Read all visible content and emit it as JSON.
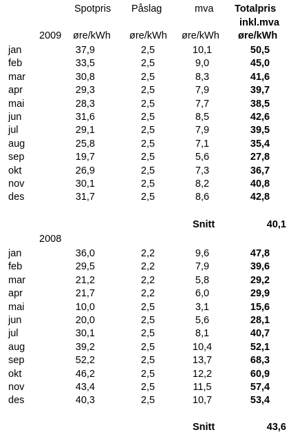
{
  "header": {
    "col1": "Spotpris",
    "col2": "Påslag",
    "col3": "mva",
    "col4_line1": "Totalpris",
    "col4_line2": "inkl.mva",
    "unit1": "øre/kWh",
    "unit2": "øre/kWh",
    "unit3": "øre/kWh",
    "unit4": "øre/kWh"
  },
  "sections": [
    {
      "year": "2009",
      "rows": [
        {
          "month": "jan",
          "spot": "37,9",
          "paslag": "2,5",
          "mva": "10,1",
          "total": "50,5"
        },
        {
          "month": "feb",
          "spot": "33,5",
          "paslag": "2,5",
          "mva": "9,0",
          "total": "45,0"
        },
        {
          "month": "mar",
          "spot": "30,8",
          "paslag": "2,5",
          "mva": "8,3",
          "total": "41,6"
        },
        {
          "month": "apr",
          "spot": "29,3",
          "paslag": "2,5",
          "mva": "7,9",
          "total": "39,7"
        },
        {
          "month": "mai",
          "spot": "28,3",
          "paslag": "2,5",
          "mva": "7,7",
          "total": "38,5"
        },
        {
          "month": "jun",
          "spot": "31,6",
          "paslag": "2,5",
          "mva": "8,5",
          "total": "42,6"
        },
        {
          "month": "jul",
          "spot": "29,1",
          "paslag": "2,5",
          "mva": "7,9",
          "total": "39,5"
        },
        {
          "month": "aug",
          "spot": "25,8",
          "paslag": "2,5",
          "mva": "7,1",
          "total": "35,4"
        },
        {
          "month": "sep",
          "spot": "19,7",
          "paslag": "2,5",
          "mva": "5,6",
          "total": "27,8"
        },
        {
          "month": "okt",
          "spot": "26,9",
          "paslag": "2,5",
          "mva": "7,3",
          "total": "36,7"
        },
        {
          "month": "nov",
          "spot": "30,1",
          "paslag": "2,5",
          "mva": "8,2",
          "total": "40,8"
        },
        {
          "month": "des",
          "spot": "31,7",
          "paslag": "2,5",
          "mva": "8,6",
          "total": "42,8"
        }
      ],
      "snitt_label": "Snitt",
      "snitt_value": "40,1"
    },
    {
      "year": "2008",
      "rows": [
        {
          "month": "jan",
          "spot": "36,0",
          "paslag": "2,2",
          "mva": "9,6",
          "total": "47,8"
        },
        {
          "month": "feb",
          "spot": "29,5",
          "paslag": "2,2",
          "mva": "7,9",
          "total": "39,6"
        },
        {
          "month": "mar",
          "spot": "21,2",
          "paslag": "2,2",
          "mva": "5,8",
          "total": "29,2"
        },
        {
          "month": "apr",
          "spot": "21,7",
          "paslag": "2,2",
          "mva": "6,0",
          "total": "29,9"
        },
        {
          "month": "mai",
          "spot": "10,0",
          "paslag": "2,5",
          "mva": "3,1",
          "total": "15,6"
        },
        {
          "month": "jun",
          "spot": "20,0",
          "paslag": "2,5",
          "mva": "5,6",
          "total": "28,1"
        },
        {
          "month": "jul",
          "spot": "30,1",
          "paslag": "2,5",
          "mva": "8,1",
          "total": "40,7"
        },
        {
          "month": "aug",
          "spot": "39,2",
          "paslag": "2,5",
          "mva": "10,4",
          "total": "52,1"
        },
        {
          "month": "sep",
          "spot": "52,2",
          "paslag": "2,5",
          "mva": "13,7",
          "total": "68,3"
        },
        {
          "month": "okt",
          "spot": "46,2",
          "paslag": "2,5",
          "mva": "12,2",
          "total": "60,9"
        },
        {
          "month": "nov",
          "spot": "43,4",
          "paslag": "2,5",
          "mva": "11,5",
          "total": "57,4"
        },
        {
          "month": "des",
          "spot": "40,3",
          "paslag": "2,5",
          "mva": "10,7",
          "total": "53,4"
        }
      ],
      "snitt_label": "Snitt",
      "snitt_value": "43,6"
    }
  ]
}
